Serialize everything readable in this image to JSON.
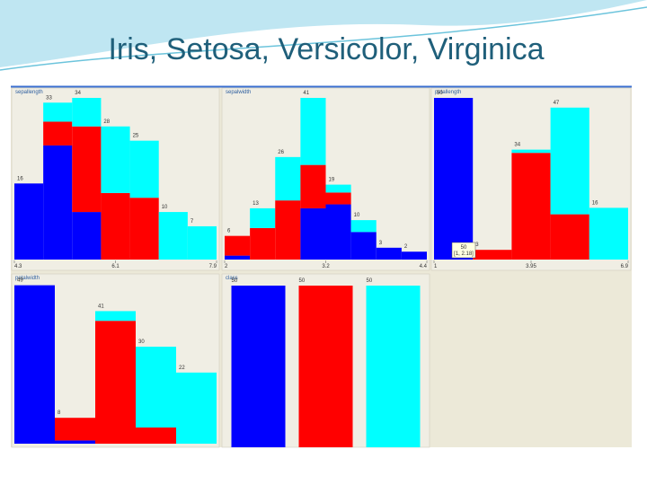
{
  "title": "Iris, Setosa, Versicolor, Virginica",
  "tooltip": {
    "count": "50",
    "range": "[1, 2.18]"
  },
  "chart_data": [
    {
      "type": "histogram",
      "title": "sepallength",
      "xlim": [
        4.3,
        7.9
      ],
      "xticks": [
        4.3,
        6.1,
        7.9
      ],
      "ylim": [
        0,
        34
      ],
      "totals": [
        16,
        33,
        34,
        28,
        25,
        10,
        7
      ],
      "series": [
        {
          "color": "#0000ff",
          "values": [
            16,
            24,
            10,
            0,
            0,
            0,
            0
          ]
        },
        {
          "color": "#ff0000",
          "values": [
            0,
            5,
            18,
            14,
            13,
            0,
            0
          ]
        },
        {
          "color": "#00ffff",
          "values": [
            0,
            4,
            6,
            14,
            12,
            10,
            7
          ]
        }
      ]
    },
    {
      "type": "histogram",
      "title": "sepalwidth",
      "xlim": [
        2,
        4.4
      ],
      "xticks": [
        2,
        3.2,
        4.4
      ],
      "ylim": [
        0,
        41
      ],
      "totals": [
        6,
        13,
        26,
        41,
        19,
        10,
        3,
        2
      ],
      "series": [
        {
          "color": "#0000ff",
          "values": [
            1,
            0,
            0,
            13,
            14,
            7,
            3,
            2
          ]
        },
        {
          "color": "#ff0000",
          "values": [
            5,
            8,
            15,
            11,
            3,
            0,
            0,
            0
          ]
        },
        {
          "color": "#00ffff",
          "values": [
            0,
            5,
            11,
            17,
            2,
            3,
            0,
            0
          ]
        }
      ]
    },
    {
      "type": "histogram",
      "title": "petallength",
      "xlim": [
        1,
        6.9
      ],
      "xticks": [
        1,
        3.95,
        6.9
      ],
      "ylim": [
        0,
        50
      ],
      "totals": [
        50,
        3,
        34,
        47,
        16
      ],
      "series": [
        {
          "color": "#0000ff",
          "values": [
            50,
            0,
            0,
            0,
            0
          ]
        },
        {
          "color": "#ff0000",
          "values": [
            0,
            3,
            33,
            14,
            0
          ]
        },
        {
          "color": "#00ffff",
          "values": [
            0,
            0,
            1,
            33,
            16
          ]
        }
      ]
    },
    {
      "type": "histogram",
      "title": "petalwidth",
      "ylim": [
        0,
        50
      ],
      "totals": [
        49,
        8,
        41,
        30,
        22
      ],
      "series": [
        {
          "color": "#0000ff",
          "values": [
            49,
            1,
            0,
            0,
            0
          ]
        },
        {
          "color": "#ff0000",
          "values": [
            0,
            7,
            38,
            5,
            0
          ]
        },
        {
          "color": "#00ffff",
          "values": [
            0,
            0,
            3,
            25,
            22
          ]
        }
      ]
    },
    {
      "type": "bar",
      "title": "class",
      "ylim": [
        0,
        50
      ],
      "values": [
        50,
        50,
        50
      ],
      "colors": [
        "#0000ff",
        "#ff0000",
        "#00ffff"
      ]
    }
  ]
}
